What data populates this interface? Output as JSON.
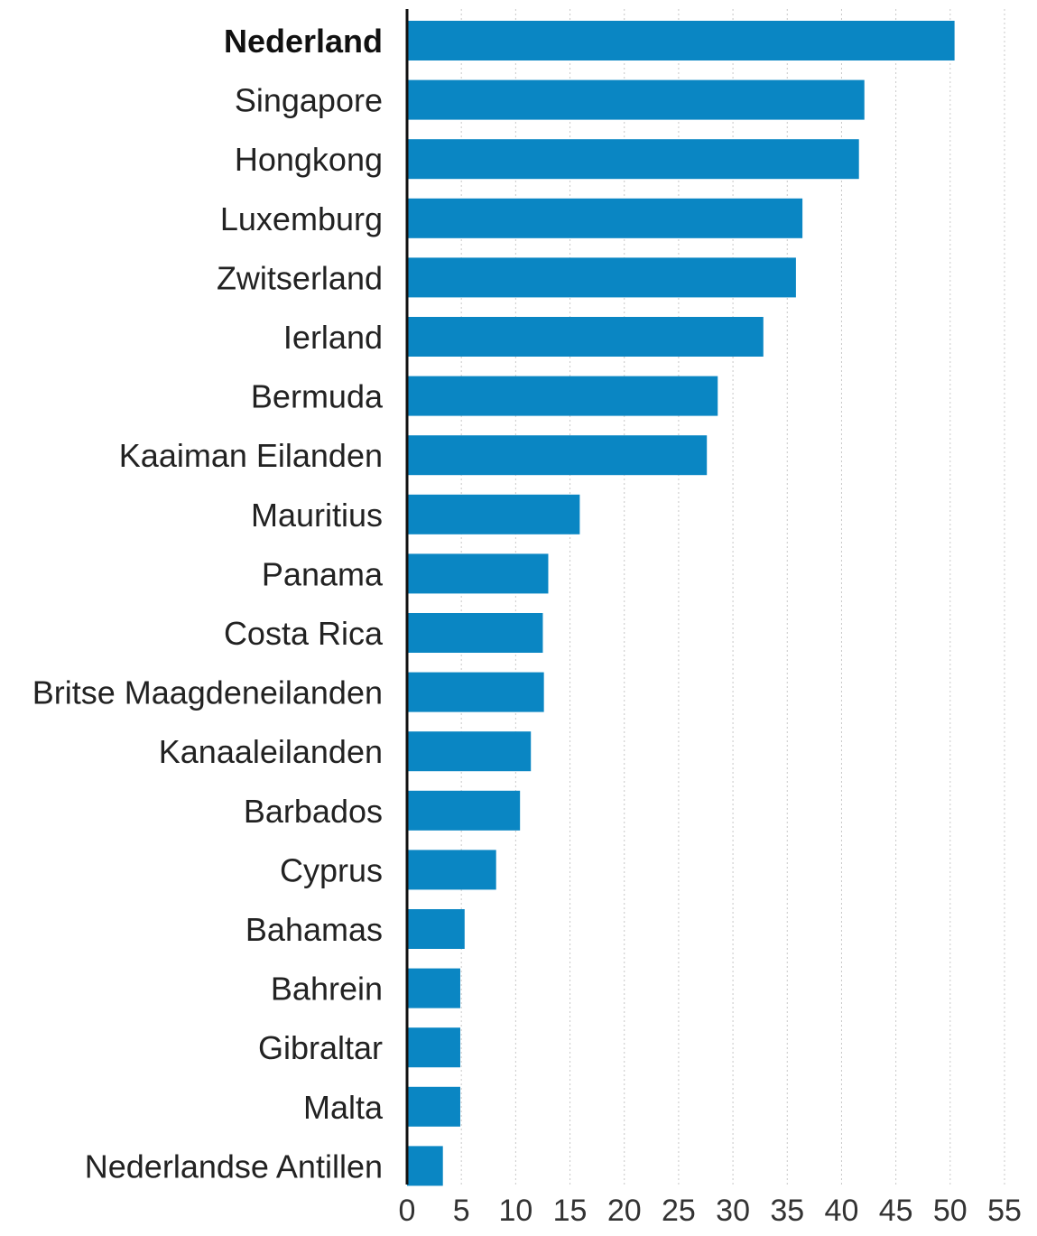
{
  "chart_data": {
    "type": "bar",
    "orientation": "horizontal",
    "categories": [
      "Nederland",
      "Singapore",
      "Hongkong",
      "Luxemburg",
      "Zwitserland",
      "Ierland",
      "Bermuda",
      "Kaaiman Eilanden",
      "Mauritius",
      "Panama",
      "Costa Rica",
      "Britse Maagdeneilanden",
      "Kanaaleilanden",
      "Barbados",
      "Cyprus",
      "Bahamas",
      "Bahrein",
      "Gibraltar",
      "Malta",
      "Nederlandse Antillen"
    ],
    "values": [
      50.4,
      42.1,
      41.6,
      36.4,
      35.8,
      32.8,
      28.6,
      27.6,
      15.9,
      13.0,
      12.5,
      12.6,
      11.4,
      10.4,
      8.2,
      5.3,
      4.9,
      4.9,
      4.9,
      3.3
    ],
    "highlight": "Nederland",
    "xlim": [
      0,
      55
    ],
    "xticks": [
      0,
      5,
      10,
      15,
      20,
      25,
      30,
      35,
      40,
      45,
      50,
      55
    ],
    "bar_color": "#0a86c3",
    "grid": true,
    "title": "",
    "xlabel": "",
    "ylabel": ""
  }
}
